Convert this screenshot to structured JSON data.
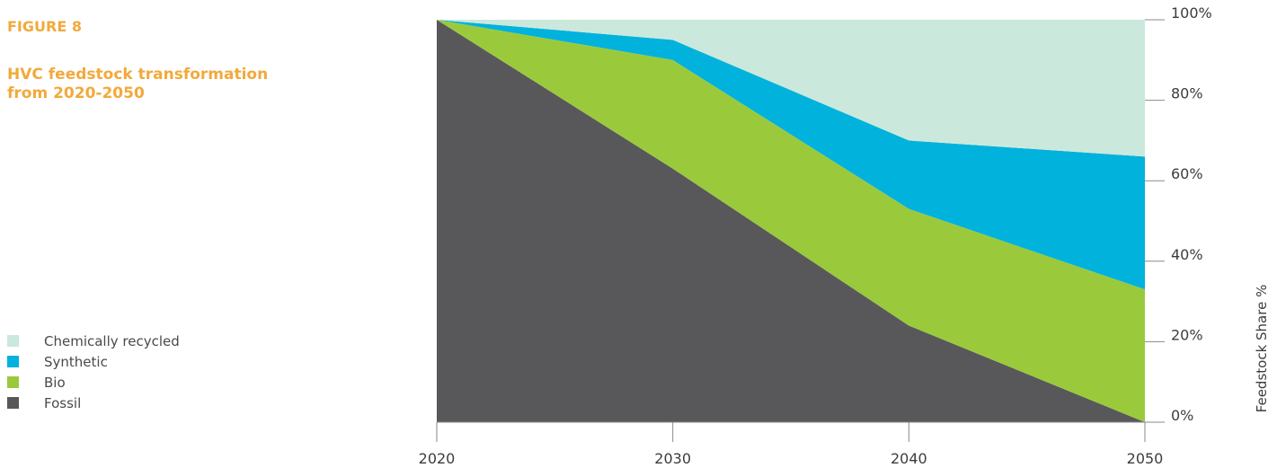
{
  "figure": {
    "label": "FIGURE 8",
    "title": "HVC feedstock transformation from 2020-2050"
  },
  "colors": {
    "chemically_recycled": "#cbe8dc",
    "synthetic": "#00b2dc",
    "bio": "#9aca3c",
    "fossil": "#58585a",
    "title_accent": "#f2a93b"
  },
  "chart_data": {
    "type": "area",
    "stacked": true,
    "x": [
      2020,
      2030,
      2040,
      2050
    ],
    "x_tick_labels": [
      "2020",
      "2030",
      "2040",
      "2050"
    ],
    "ylim": [
      0,
      100
    ],
    "y_ticks": [
      0,
      20,
      40,
      60,
      80,
      100
    ],
    "y_tick_labels": [
      "0%",
      "20%",
      "40%",
      "60%",
      "80%",
      "100%"
    ],
    "ylabel": "Feedstock Share %",
    "y_axis_position": "right",
    "legend_position": "left",
    "series": [
      {
        "name": "Fossil",
        "key": "fossil",
        "values": [
          100,
          63,
          24,
          0
        ]
      },
      {
        "name": "Bio",
        "key": "bio",
        "values": [
          0,
          27,
          29,
          33
        ]
      },
      {
        "name": "Synthetic",
        "key": "synthetic",
        "values": [
          0,
          5,
          17,
          33
        ]
      },
      {
        "name": "Chemically recycled",
        "key": "chemically_recycled",
        "values": [
          0,
          5,
          30,
          34
        ]
      }
    ],
    "legend_order": [
      "chemically_recycled",
      "synthetic",
      "bio",
      "fossil"
    ]
  }
}
